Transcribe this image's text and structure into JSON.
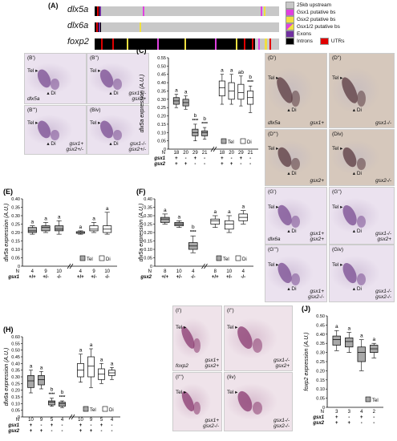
{
  "panelA": {
    "label": "(A)",
    "genes": [
      "dlx5a",
      "dlx6a",
      "foxp2"
    ],
    "legend": [
      "25kb upstream",
      "Gsx1 putative bs",
      "Gsx2 putative bs",
      "Gsx1/2 putative bs",
      "Exons",
      "Introns",
      "UTRs"
    ],
    "colors": {
      "upstream": "#c8c8c8",
      "gsx1": "#e040e0",
      "gsx2": "#f0e040",
      "gsx12": "#8040c0",
      "exon": "#7030a0",
      "intron": "#000000",
      "utr": "#e00000"
    }
  },
  "photos": {
    "B1": {
      "label": "(B')",
      "tel": "Tel",
      "di": "Di",
      "gene": "dlx5a",
      "genotype": ""
    },
    "B2": {
      "label": "(B'')",
      "tel": "Tel",
      "di": "Di",
      "gene": "",
      "genotype": "gsx1+/-\ngsx2+"
    },
    "B3": {
      "label": "(B''')",
      "tel": "Tel",
      "di": "Di",
      "gene": "",
      "genotype": "gsx1+\ngsx2+/-"
    },
    "B4": {
      "label": "(Biv)",
      "tel": "Tel",
      "di": "Di",
      "gene": "",
      "genotype": "gsx1-/-\ngsx2+/-"
    },
    "D1": {
      "label": "(D')",
      "tel": "Tel",
      "di": "Di",
      "gene": "dlx5a",
      "genotype": "gsx1+"
    },
    "D2": {
      "label": "(D'')",
      "tel": "Tel",
      "di": "Di",
      "gene": "",
      "genotype": "gsx1-/-"
    },
    "D3": {
      "label": "(D''')",
      "tel": "Tel",
      "di": "Di",
      "gene": "",
      "genotype": "gsx2+"
    },
    "D4": {
      "label": "(Div)",
      "tel": "Tel",
      "di": "Di",
      "gene": "",
      "genotype": "gsx2-/-"
    },
    "G1": {
      "label": "(G')",
      "tel": "Tel",
      "di": "Di",
      "gene": "dlx6a",
      "genotype": "gsx1+\ngsx2+"
    },
    "G2": {
      "label": "(G'')",
      "tel": "Tel",
      "di": "Di",
      "gene": "",
      "genotype": "gsx1-/-\ngsx2+"
    },
    "G3": {
      "label": "(G''')",
      "tel": "Tel",
      "di": "Di",
      "gene": "",
      "genotype": "gsx1+\ngsx2-/-"
    },
    "G4": {
      "label": "(Giv)",
      "tel": "Tel",
      "di": "Di",
      "gene": "",
      "genotype": "gsx1-/-\ngsx2-/-"
    },
    "I1": {
      "label": "(I')",
      "tel": "Tel",
      "di": "",
      "gene": "foxp2",
      "genotype": "gsx1+\ngsx2+"
    },
    "I2": {
      "label": "(I'')",
      "tel": "Tel",
      "di": "",
      "gene": "",
      "genotype": "gsx1-/-\ngsx2+"
    },
    "I3": {
      "label": "(I''')",
      "tel": "Tel",
      "di": "",
      "gene": "",
      "genotype": "gsx1+\ngsx2-/-"
    },
    "I4": {
      "label": "(Iiv)",
      "tel": "Tel",
      "di": "",
      "gene": "",
      "genotype": "gsx1-/-\ngsx2-/-"
    }
  },
  "chart_data": [
    {
      "panel": "(C)",
      "type": "box",
      "ylabel": "dlx5a expression (A.U.)",
      "ylim": [
        0,
        0.55
      ],
      "yticks": [
        "0",
        "0.05",
        "0.10",
        "0.15",
        "0.20",
        "0.25",
        "0.30",
        "0.35",
        "0.40",
        "0.45",
        "0.50",
        "0.55"
      ],
      "legend": [
        "Tel",
        "Di"
      ],
      "rowlabels": [
        "N",
        "gsx1",
        "gsx2"
      ],
      "groups": [
        {
          "series": "Tel",
          "n": "18",
          "g1": "+",
          "g2": "+",
          "letter": "a",
          "stars": "",
          "box": [
            0.25,
            0.27,
            0.29,
            0.31,
            0.33
          ]
        },
        {
          "series": "Tel",
          "n": "20",
          "g1": "-",
          "g2": "+",
          "letter": "a",
          "stars": "",
          "box": [
            0.24,
            0.26,
            0.28,
            0.3,
            0.32
          ]
        },
        {
          "series": "Tel",
          "n": "29",
          "g1": "+",
          "g2": "-",
          "letter": "b",
          "stars": "****",
          "box": [
            0.05,
            0.08,
            0.1,
            0.12,
            0.15
          ]
        },
        {
          "series": "Tel",
          "n": "21",
          "g1": "-",
          "g2": "-",
          "letter": "b",
          "stars": "****",
          "box": [
            0.06,
            0.08,
            0.1,
            0.11,
            0.13
          ]
        },
        {
          "series": "Di",
          "n": "18",
          "g1": "+",
          "g2": "+",
          "letter": "a",
          "stars": "",
          "box": [
            0.27,
            0.32,
            0.37,
            0.41,
            0.45
          ]
        },
        {
          "series": "Di",
          "n": "20",
          "g1": "-",
          "g2": "+",
          "letter": "a",
          "stars": "",
          "box": [
            0.27,
            0.3,
            0.35,
            0.4,
            0.45
          ]
        },
        {
          "series": "Di",
          "n": "29",
          "g1": "+",
          "g2": "-",
          "letter": "ab",
          "stars": "",
          "box": [
            0.26,
            0.3,
            0.34,
            0.39,
            0.44
          ]
        },
        {
          "series": "Di",
          "n": "21",
          "g1": "-",
          "g2": "-",
          "letter": "b",
          "stars": "****",
          "box": [
            0.22,
            0.27,
            0.31,
            0.35,
            0.38
          ]
        }
      ]
    },
    {
      "panel": "(E)",
      "type": "box",
      "ylabel": "dlx5a expression (A.U.)",
      "ylim": [
        0,
        0.4
      ],
      "yticks": [
        "0",
        "0.05",
        "0.10",
        "0.15",
        "0.20",
        "0.25",
        "0.30",
        "0.35",
        "0.40"
      ],
      "legend": [
        "Tel",
        "Di"
      ],
      "rowlabels": [
        "N",
        "gsx1"
      ],
      "groups": [
        {
          "series": "Tel",
          "n": "4",
          "g1": "+/+",
          "letter": "a",
          "stars": "",
          "box": [
            0.19,
            0.2,
            0.21,
            0.23,
            0.24
          ]
        },
        {
          "series": "Tel",
          "n": "9",
          "g1": "+/-",
          "letter": "a",
          "stars": "",
          "box": [
            0.2,
            0.21,
            0.23,
            0.24,
            0.26
          ]
        },
        {
          "series": "Tel",
          "n": "10",
          "g1": "-/-",
          "letter": "a",
          "stars": "",
          "box": [
            0.19,
            0.21,
            0.22,
            0.24,
            0.27
          ]
        },
        {
          "series": "Di",
          "n": "4",
          "g1": "+/+",
          "letter": "a",
          "stars": "",
          "box": [
            0.19,
            0.195,
            0.2,
            0.205,
            0.21
          ]
        },
        {
          "series": "Di",
          "n": "9",
          "g1": "+/-",
          "letter": "a",
          "stars": "",
          "box": [
            0.2,
            0.21,
            0.22,
            0.24,
            0.26
          ]
        },
        {
          "series": "Di",
          "n": "10",
          "g1": "-/-",
          "letter": "a",
          "stars": "",
          "box": [
            0.19,
            0.2,
            0.22,
            0.24,
            0.32
          ]
        }
      ]
    },
    {
      "panel": "(F)",
      "type": "box",
      "ylabel": "dlx5a expression (A.U.)",
      "ylim": [
        0,
        0.4
      ],
      "yticks": [
        "0",
        "0.05",
        "0.10",
        "0.15",
        "0.20",
        "0.25",
        "0.30",
        "0.35",
        "0.40"
      ],
      "legend": [
        "Tel",
        "Di"
      ],
      "rowlabels": [
        "N",
        "gsx2"
      ],
      "groups": [
        {
          "series": "Tel",
          "n": "8",
          "g1": "+/+",
          "letter": "a",
          "stars": "",
          "box": [
            0.25,
            0.26,
            0.28,
            0.29,
            0.31
          ]
        },
        {
          "series": "Tel",
          "n": "10",
          "g1": "+/-",
          "letter": "a",
          "stars": "",
          "box": [
            0.23,
            0.24,
            0.25,
            0.26,
            0.27
          ]
        },
        {
          "series": "Tel",
          "n": "4",
          "g1": "-/-",
          "letter": "b",
          "stars": "****",
          "box": [
            0.08,
            0.1,
            0.12,
            0.14,
            0.18
          ]
        },
        {
          "series": "Di",
          "n": "8",
          "g1": "+/+",
          "letter": "a",
          "stars": "",
          "box": [
            0.23,
            0.25,
            0.27,
            0.28,
            0.3
          ]
        },
        {
          "series": "Di",
          "n": "10",
          "g1": "+/-",
          "letter": "a",
          "stars": "",
          "box": [
            0.2,
            0.22,
            0.25,
            0.27,
            0.3
          ]
        },
        {
          "series": "Di",
          "n": "4",
          "g1": "-/-",
          "letter": "a",
          "stars": "",
          "box": [
            0.25,
            0.27,
            0.29,
            0.31,
            0.33
          ]
        }
      ]
    },
    {
      "panel": "(H)",
      "type": "box",
      "ylabel": "dlx6a expression (A.U.)",
      "ylim": [
        0,
        0.6
      ],
      "yticks": [
        "0",
        "0.05",
        "0.10",
        "0.15",
        "0.20",
        "0.25",
        "0.30",
        "0.35",
        "0.40",
        "0.45",
        "0.50",
        "0.55",
        "0.60"
      ],
      "legend": [
        "Tel",
        "Di"
      ],
      "rowlabels": [
        "N",
        "gsx1",
        "gsx2"
      ],
      "groups": [
        {
          "series": "Tel",
          "n": "10",
          "g1": "+",
          "g2": "+",
          "letter": "a",
          "stars": "",
          "box": [
            0.18,
            0.22,
            0.27,
            0.31,
            0.35
          ]
        },
        {
          "series": "Tel",
          "n": "9",
          "g1": "-",
          "g2": "+",
          "letter": "a",
          "stars": "",
          "box": [
            0.21,
            0.24,
            0.28,
            0.31,
            0.34
          ]
        },
        {
          "series": "Tel",
          "n": "5",
          "g1": "+",
          "g2": "-",
          "letter": "b",
          "stars": "****",
          "box": [
            0.08,
            0.09,
            0.11,
            0.12,
            0.14
          ]
        },
        {
          "series": "Tel",
          "n": "4",
          "g1": "-",
          "g2": "-",
          "letter": "b",
          "stars": "****",
          "box": [
            0.07,
            0.08,
            0.1,
            0.11,
            0.12
          ]
        },
        {
          "series": "Di",
          "n": "10",
          "g1": "+",
          "g2": "+",
          "letter": "a",
          "stars": "",
          "box": [
            0.26,
            0.3,
            0.35,
            0.4,
            0.47
          ]
        },
        {
          "series": "Di",
          "n": "9",
          "g1": "-",
          "g2": "+",
          "letter": "a",
          "stars": "",
          "box": [
            0.22,
            0.3,
            0.38,
            0.45,
            0.51
          ]
        },
        {
          "series": "Di",
          "n": "5",
          "g1": "+",
          "g2": "-",
          "letter": "a",
          "stars": "",
          "box": [
            0.25,
            0.28,
            0.32,
            0.36,
            0.4
          ]
        },
        {
          "series": "Di",
          "n": "4",
          "g1": "-",
          "g2": "-",
          "letter": "a",
          "stars": "",
          "box": [
            0.28,
            0.31,
            0.33,
            0.35,
            0.37
          ]
        }
      ]
    },
    {
      "panel": "(J)",
      "type": "box",
      "ylabel": "foxp2 expression (A.U.)",
      "ylim": [
        0,
        0.5
      ],
      "yticks": [
        "0",
        "0.05",
        "0.10",
        "0.15",
        "0.20",
        "0.25",
        "0.30",
        "0.35",
        "0.40",
        "0.45",
        "0.50"
      ],
      "legend": [
        "Tel"
      ],
      "rowlabels": [
        "N",
        "gsx1",
        "gsx2"
      ],
      "groups": [
        {
          "series": "Tel",
          "n": "3",
          "g1": "+",
          "g2": "+",
          "letter": "a",
          "stars": "",
          "box": [
            0.31,
            0.34,
            0.37,
            0.39,
            0.42
          ]
        },
        {
          "series": "Tel",
          "n": "3",
          "g1": "-",
          "g2": "+",
          "letter": "a",
          "stars": "",
          "box": [
            0.3,
            0.33,
            0.36,
            0.38,
            0.41
          ]
        },
        {
          "series": "Tel",
          "n": "4",
          "g1": "+",
          "g2": "-",
          "letter": "a",
          "stars": "",
          "box": [
            0.2,
            0.25,
            0.3,
            0.33,
            0.37
          ]
        },
        {
          "series": "Tel",
          "n": "2",
          "g1": "-",
          "g2": "-",
          "letter": "a",
          "stars": "",
          "box": [
            0.27,
            0.3,
            0.32,
            0.34,
            0.35
          ]
        }
      ]
    }
  ]
}
